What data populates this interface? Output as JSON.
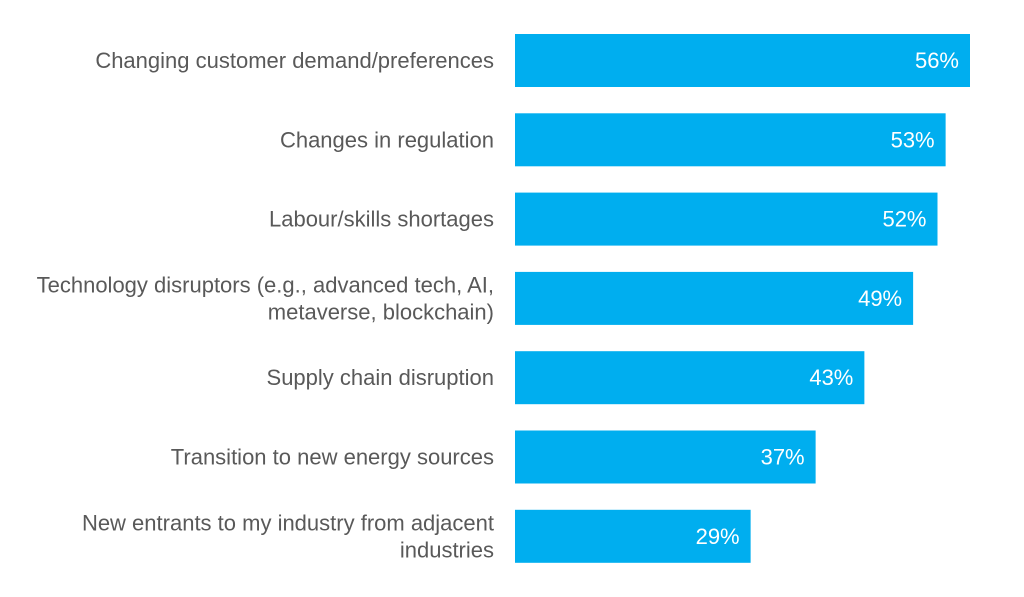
{
  "chart_data": {
    "type": "bar",
    "orientation": "horizontal",
    "title": "",
    "xlabel": "",
    "ylabel": "",
    "grid": false,
    "legend": "none",
    "bar_color": "#00AEEF",
    "label_color": "#595959",
    "value_label_color": "#FFFFFF",
    "value_suffix": "%",
    "categories": [
      [
        "Changing customer demand/preferences"
      ],
      [
        "Changes in regulation"
      ],
      [
        "Labour/skills shortages"
      ],
      [
        "Technology disruptors (e.g., advanced tech, AI,",
        "metaverse, blockchain)"
      ],
      [
        "Supply chain disruption"
      ],
      [
        "Transition to new energy sources"
      ],
      [
        "New entrants to my industry from adjacent",
        "industries"
      ]
    ],
    "values": [
      56,
      53,
      52,
      49,
      43,
      37,
      29
    ],
    "xlim": [
      0,
      56
    ]
  }
}
